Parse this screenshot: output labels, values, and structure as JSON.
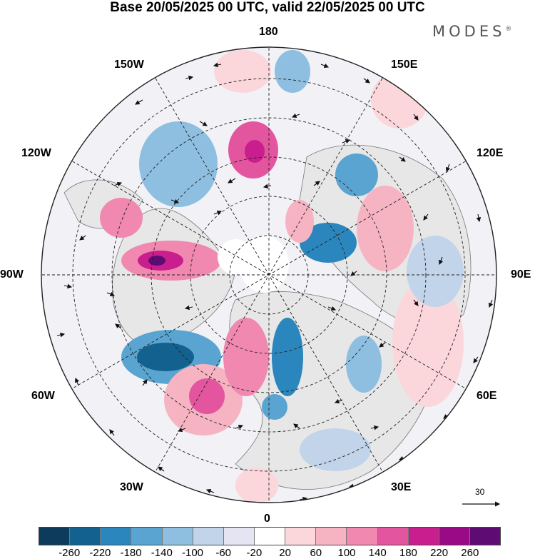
{
  "title": "Base 20/05/2025 00 UTC, valid 22/05/2025 00 UTC",
  "brand": "MODES",
  "brand_mark": "®",
  "longitude_labels": {
    "lon_0": "0",
    "lon_30e": "30E",
    "lon_60e": "60E",
    "lon_90e": "90E",
    "lon_120e": "120E",
    "lon_150e": "150E",
    "lon_180": "180",
    "lon_150w": "150W",
    "lon_120w": "120W",
    "lon_90w": "90W",
    "lon_60w": "60W",
    "lon_30w": "30W"
  },
  "vector_scale_label": "30",
  "colorbar": {
    "colors": [
      "#0d3b5c",
      "#13618f",
      "#2b86bd",
      "#5aa4d1",
      "#8fbfe0",
      "#c2d4ea",
      "#e4e4f2",
      "#ffffff",
      "#fbd7dc",
      "#f6b4c3",
      "#f088b0",
      "#e3559e",
      "#c81e8e",
      "#9b0a86",
      "#5e0b73"
    ],
    "ticks": [
      "-260",
      "-220",
      "-180",
      "-140",
      "-100",
      "-60",
      "-20",
      "20",
      "60",
      "100",
      "140",
      "180",
      "220",
      "260"
    ]
  }
}
